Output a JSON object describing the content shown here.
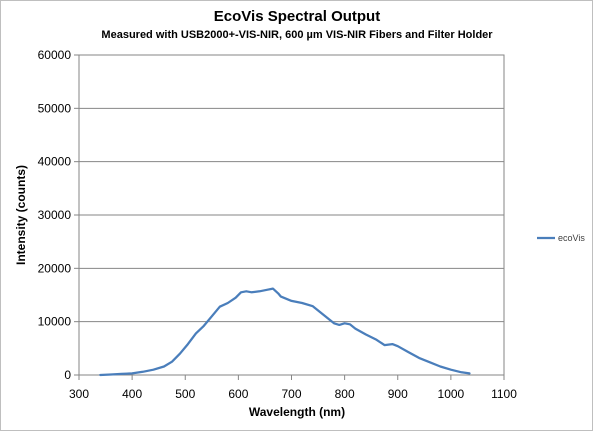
{
  "chart_data": {
    "type": "line",
    "title": "EcoVis Spectral Output",
    "subtitle": "Measured with USB2000+-VIS-NIR, 600 µm VIS-NIR Fibers and Filter Holder",
    "xlabel": "Wavelength (nm)",
    "ylabel": "Intensity  (counts)",
    "xlim": [
      300,
      1100
    ],
    "ylim": [
      0,
      60000
    ],
    "xticks": [
      300,
      400,
      500,
      600,
      700,
      800,
      900,
      1000,
      1100
    ],
    "yticks": [
      0,
      10000,
      20000,
      30000,
      40000,
      50000,
      60000
    ],
    "grid": "horizontal",
    "legend": "right",
    "series": [
      {
        "name": "ecoVis",
        "color": "#4a7ebb",
        "x": [
          340,
          360,
          380,
          400,
          420,
          440,
          460,
          475,
          490,
          505,
          520,
          535,
          550,
          565,
          580,
          595,
          605,
          615,
          625,
          640,
          655,
          665,
          675,
          680,
          700,
          720,
          740,
          760,
          780,
          790,
          800,
          810,
          820,
          840,
          860,
          875,
          890,
          900,
          920,
          940,
          960,
          980,
          1000,
          1020,
          1035
        ],
        "y": [
          0,
          100,
          200,
          300,
          600,
          1000,
          1600,
          2500,
          4000,
          5800,
          7800,
          9200,
          11000,
          12800,
          13500,
          14500,
          15500,
          15700,
          15500,
          15700,
          16000,
          16200,
          15300,
          14700,
          13900,
          13500,
          12900,
          11300,
          9700,
          9400,
          9700,
          9500,
          8700,
          7600,
          6600,
          5600,
          5800,
          5400,
          4300,
          3200,
          2400,
          1600,
          1000,
          500,
          300
        ]
      }
    ]
  }
}
